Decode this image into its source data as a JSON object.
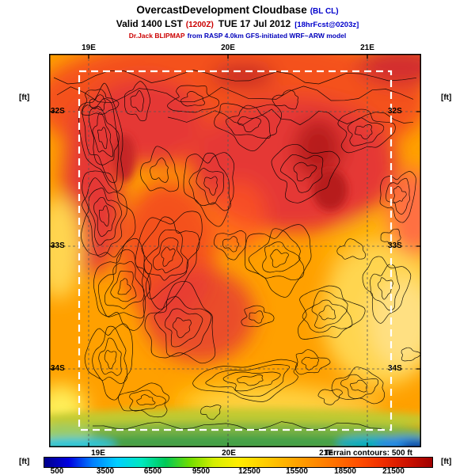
{
  "header": {
    "title": "OvercastDevelopment Cloudbase",
    "title_tag": "(BL CL)",
    "valid_prefix": "Valid 1400 LST",
    "valid_zulu": "(1200Z)",
    "valid_date": "TUE 17 Jul 2012",
    "valid_fcst": "[18hrFcst@0203z]",
    "model_part1": "Dr.Jack BLIPMAP",
    "model_part2": "from RASP 4.0km GFS-initiated WRF~ARW model"
  },
  "map": {
    "lon_top": [
      "19E",
      "20E",
      "21E"
    ],
    "lon_bottom": [
      "19E",
      "20E",
      "21E"
    ],
    "lat_left": [
      "32S",
      "33S",
      "34S"
    ],
    "lat_right": [
      "32S",
      "33S",
      "34S"
    ],
    "unit_left": "[ft]",
    "unit_right": "[ft]"
  },
  "legend": {
    "unit_left": "[ft]",
    "unit_right": "[ft]",
    "terrain_note": "Terrain contours: 500 ft",
    "ticks": [
      "500",
      "3500",
      "6500",
      "9500",
      "12500",
      "15500",
      "18500",
      "21500"
    ],
    "palette": [
      "#00008B",
      "#0000E0",
      "#0080FF",
      "#00CFFF",
      "#00E8C0",
      "#00C957",
      "#70DD00",
      "#D5EE00",
      "#FFEE00",
      "#FFD000",
      "#FFB000",
      "#FF9000",
      "#FF7000",
      "#FF4D00",
      "#EE2C00",
      "#CC1100",
      "#A00000"
    ],
    "colors": {
      "tag_blue": "#0000cc",
      "alert_red": "#cc0000",
      "domain_boundary": "#ffffff"
    }
  }
}
